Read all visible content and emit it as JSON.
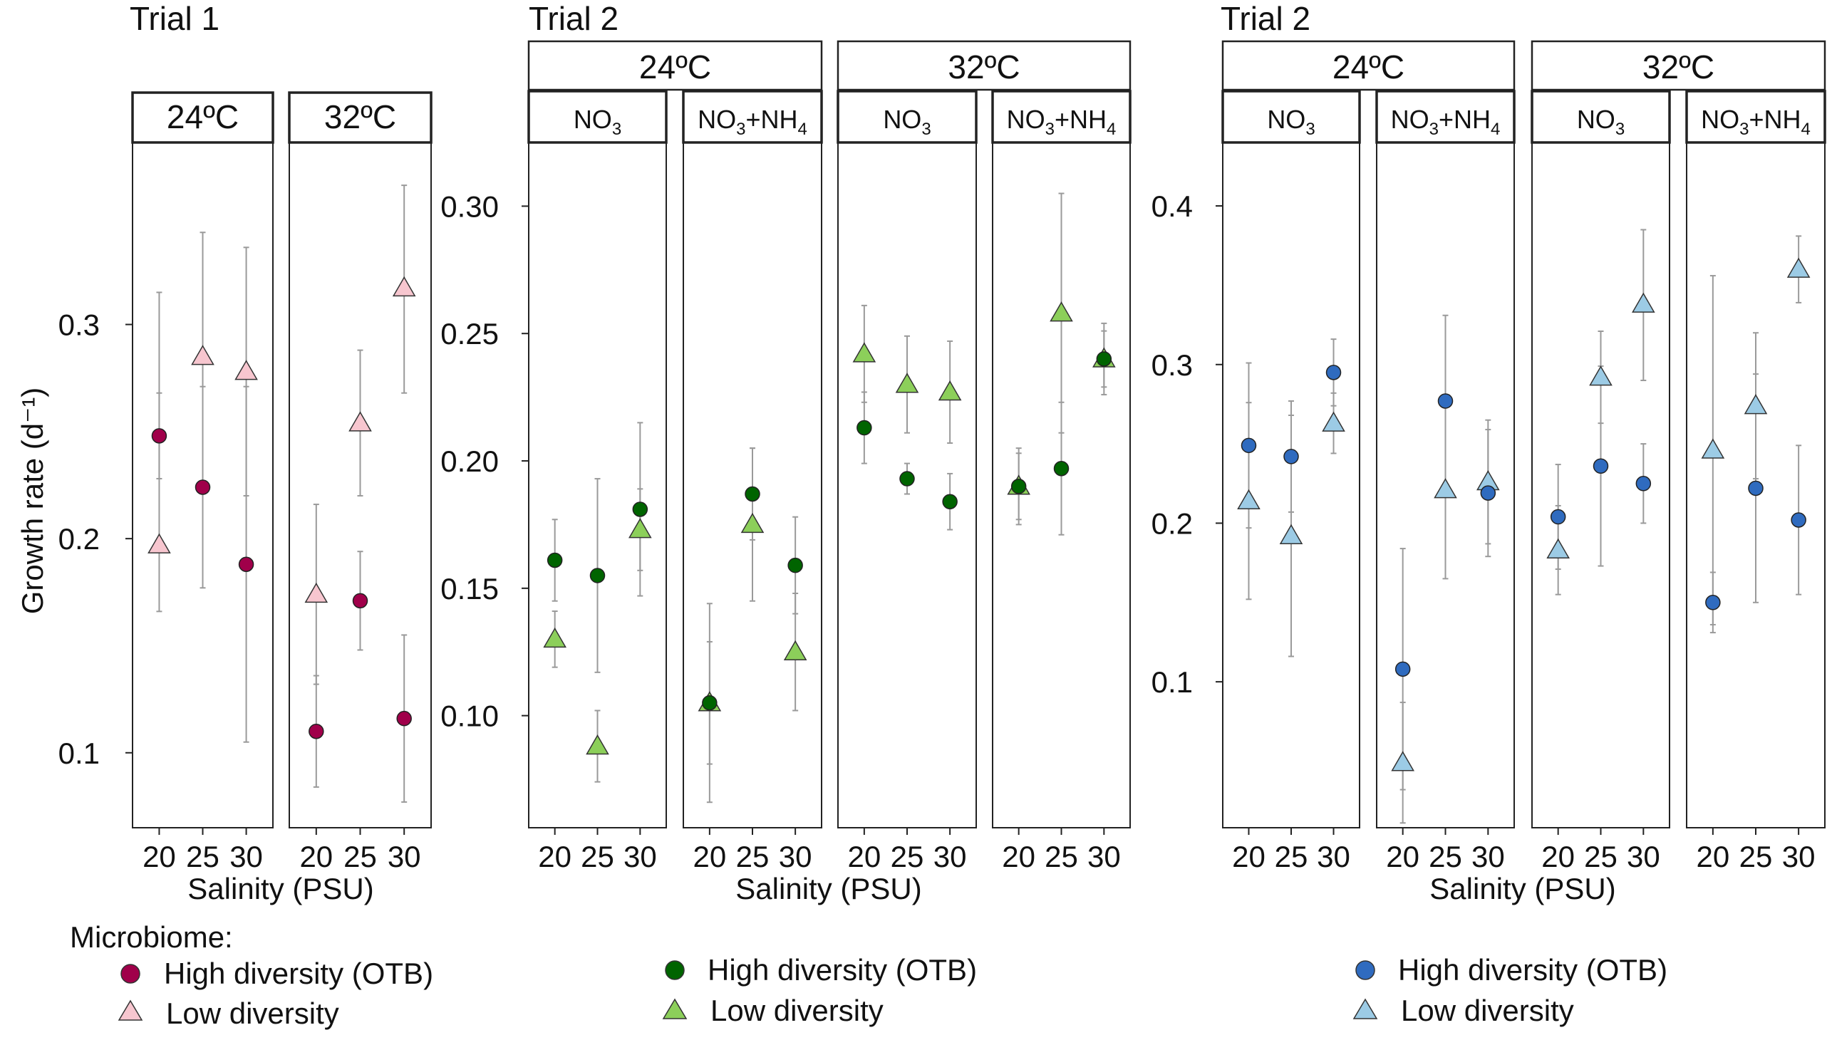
{
  "colors": {
    "trial1": {
      "high": "#a0004a",
      "low": "#f7c6cf"
    },
    "trial2a": {
      "high": "#006400",
      "low": "#8ccf5a"
    },
    "trial2b": {
      "high": "#2f6bbf",
      "low": "#9ccbe5"
    },
    "errorbar": "#9a9a9a",
    "frame": "#222222"
  },
  "shared": {
    "ylabel": "Growth rate (d⁻¹)",
    "xlabel": "Salinity (PSU)",
    "salinity_ticks": [
      "20",
      "25",
      "30"
    ],
    "legend_title": "Microbiome:",
    "series_names": {
      "high": "High diversity (OTB)",
      "low": "Low diversity"
    }
  },
  "chart_data": [
    {
      "type": "scatter",
      "title": "Trial 1",
      "ylim": [
        0.065,
        0.385
      ],
      "yticks": [
        "0.1",
        "0.2",
        "0.3"
      ],
      "panels": [
        {
          "label": "24ºC",
          "high": [
            {
              "x": 20,
              "y": 0.248,
              "lo": 0.228,
              "hi": 0.268
            },
            {
              "x": 25,
              "y": 0.224,
              "lo": 0.177,
              "hi": 0.271
            },
            {
              "x": 30,
              "y": 0.188,
              "lo": 0.105,
              "hi": 0.271
            }
          ],
          "low": [
            {
              "x": 20,
              "y": 0.197,
              "lo": 0.166,
              "hi": 0.315
            },
            {
              "x": 25,
              "y": 0.285,
              "lo": 0.226,
              "hi": 0.343
            },
            {
              "x": 30,
              "y": 0.278,
              "lo": 0.22,
              "hi": 0.336
            }
          ]
        },
        {
          "label": "32ºC",
          "high": [
            {
              "x": 20,
              "y": 0.11,
              "lo": 0.084,
              "hi": 0.136
            },
            {
              "x": 25,
              "y": 0.171,
              "lo": 0.148,
              "hi": 0.194
            },
            {
              "x": 30,
              "y": 0.116,
              "lo": 0.077,
              "hi": 0.155
            }
          ],
          "low": [
            {
              "x": 20,
              "y": 0.174,
              "lo": 0.132,
              "hi": 0.216
            },
            {
              "x": 25,
              "y": 0.254,
              "lo": 0.22,
              "hi": 0.288
            },
            {
              "x": 30,
              "y": 0.317,
              "lo": 0.268,
              "hi": 0.365
            }
          ]
        }
      ]
    },
    {
      "type": "scatter",
      "title": "Trial 2",
      "ylim": [
        0.056,
        0.325
      ],
      "yticks": [
        "0.10",
        "0.15",
        "0.20",
        "0.25",
        "0.30"
      ],
      "groups": [
        "24ºC",
        "32ºC"
      ],
      "panels": [
        {
          "label": [
            "NO",
            "3"
          ],
          "high": [
            {
              "x": 20,
              "y": 0.161,
              "lo": 0.145,
              "hi": 0.177
            },
            {
              "x": 25,
              "y": 0.155,
              "lo": 0.117,
              "hi": 0.193
            },
            {
              "x": 30,
              "y": 0.181,
              "lo": 0.147,
              "hi": 0.215
            }
          ],
          "low": [
            {
              "x": 20,
              "y": 0.13,
              "lo": 0.119,
              "hi": 0.141
            },
            {
              "x": 25,
              "y": 0.088,
              "lo": 0.074,
              "hi": 0.102
            },
            {
              "x": 30,
              "y": 0.173,
              "lo": 0.157,
              "hi": 0.189
            }
          ]
        },
        {
          "label": [
            "NO",
            "3",
            "+NH",
            "4"
          ],
          "high": [
            {
              "x": 20,
              "y": 0.105,
              "lo": 0.081,
              "hi": 0.129
            },
            {
              "x": 25,
              "y": 0.187,
              "lo": 0.169,
              "hi": 0.205
            },
            {
              "x": 30,
              "y": 0.159,
              "lo": 0.14,
              "hi": 0.178
            }
          ],
          "low": [
            {
              "x": 20,
              "y": 0.105,
              "lo": 0.066,
              "hi": 0.144
            },
            {
              "x": 25,
              "y": 0.175,
              "lo": 0.145,
              "hi": 0.205
            },
            {
              "x": 30,
              "y": 0.125,
              "lo": 0.102,
              "hi": 0.148
            }
          ]
        },
        {
          "label": [
            "NO",
            "3"
          ],
          "high": [
            {
              "x": 20,
              "y": 0.213,
              "lo": 0.199,
              "hi": 0.227
            },
            {
              "x": 25,
              "y": 0.193,
              "lo": 0.187,
              "hi": 0.199
            },
            {
              "x": 30,
              "y": 0.184,
              "lo": 0.173,
              "hi": 0.195
            }
          ],
          "low": [
            {
              "x": 20,
              "y": 0.242,
              "lo": 0.223,
              "hi": 0.261
            },
            {
              "x": 25,
              "y": 0.23,
              "lo": 0.211,
              "hi": 0.249
            },
            {
              "x": 30,
              "y": 0.227,
              "lo": 0.207,
              "hi": 0.247
            }
          ]
        },
        {
          "label": [
            "NO",
            "3",
            "+NH",
            "4"
          ],
          "high": [
            {
              "x": 20,
              "y": 0.19,
              "lo": 0.177,
              "hi": 0.203
            },
            {
              "x": 25,
              "y": 0.197,
              "lo": 0.171,
              "hi": 0.223
            },
            {
              "x": 30,
              "y": 0.24,
              "lo": 0.229,
              "hi": 0.251
            }
          ],
          "low": [
            {
              "x": 20,
              "y": 0.19,
              "lo": 0.175,
              "hi": 0.205
            },
            {
              "x": 25,
              "y": 0.258,
              "lo": 0.211,
              "hi": 0.305
            },
            {
              "x": 30,
              "y": 0.24,
              "lo": 0.226,
              "hi": 0.254
            }
          ]
        }
      ]
    },
    {
      "type": "scatter",
      "title": "Trial 2",
      "ylim": [
        0.008,
        0.44
      ],
      "yticks": [
        "0.1",
        "0.2",
        "0.3",
        "0.4"
      ],
      "groups": [
        "24ºC",
        "32ºC"
      ],
      "panels": [
        {
          "label": [
            "NO",
            "3"
          ],
          "high": [
            {
              "x": 20,
              "y": 0.249,
              "lo": 0.197,
              "hi": 0.301
            },
            {
              "x": 25,
              "y": 0.242,
              "lo": 0.207,
              "hi": 0.277
            },
            {
              "x": 30,
              "y": 0.295,
              "lo": 0.274,
              "hi": 0.316
            }
          ],
          "low": [
            {
              "x": 20,
              "y": 0.214,
              "lo": 0.152,
              "hi": 0.276
            },
            {
              "x": 25,
              "y": 0.192,
              "lo": 0.116,
              "hi": 0.268
            },
            {
              "x": 30,
              "y": 0.263,
              "lo": 0.244,
              "hi": 0.282
            }
          ]
        },
        {
          "label": [
            "NO",
            "3",
            "+NH",
            "4"
          ],
          "high": [
            {
              "x": 20,
              "y": 0.108,
              "lo": 0.032,
              "hi": 0.184
            },
            {
              "x": 25,
              "y": 0.277,
              "lo": 0.223,
              "hi": 0.331
            },
            {
              "x": 30,
              "y": 0.219,
              "lo": 0.179,
              "hi": 0.259
            }
          ],
          "low": [
            {
              "x": 20,
              "y": 0.049,
              "lo": 0.011,
              "hi": 0.087
            },
            {
              "x": 25,
              "y": 0.221,
              "lo": 0.165,
              "hi": 0.277
            },
            {
              "x": 30,
              "y": 0.226,
              "lo": 0.187,
              "hi": 0.265
            }
          ]
        },
        {
          "label": [
            "NO",
            "3"
          ],
          "high": [
            {
              "x": 20,
              "y": 0.204,
              "lo": 0.171,
              "hi": 0.237
            },
            {
              "x": 25,
              "y": 0.236,
              "lo": 0.173,
              "hi": 0.299
            },
            {
              "x": 30,
              "y": 0.225,
              "lo": 0.2,
              "hi": 0.25
            }
          ],
          "low": [
            {
              "x": 20,
              "y": 0.183,
              "lo": 0.155,
              "hi": 0.211
            },
            {
              "x": 25,
              "y": 0.292,
              "lo": 0.263,
              "hi": 0.321
            },
            {
              "x": 30,
              "y": 0.338,
              "lo": 0.29,
              "hi": 0.385
            }
          ]
        },
        {
          "label": [
            "NO",
            "3",
            "+NH",
            "4"
          ],
          "high": [
            {
              "x": 20,
              "y": 0.15,
              "lo": 0.131,
              "hi": 0.169
            },
            {
              "x": 25,
              "y": 0.222,
              "lo": 0.15,
              "hi": 0.294
            },
            {
              "x": 30,
              "y": 0.202,
              "lo": 0.155,
              "hi": 0.249
            }
          ],
          "low": [
            {
              "x": 20,
              "y": 0.246,
              "lo": 0.136,
              "hi": 0.356
            },
            {
              "x": 25,
              "y": 0.274,
              "lo": 0.228,
              "hi": 0.32
            },
            {
              "x": 30,
              "y": 0.36,
              "lo": 0.339,
              "hi": 0.381
            }
          ]
        }
      ]
    }
  ]
}
